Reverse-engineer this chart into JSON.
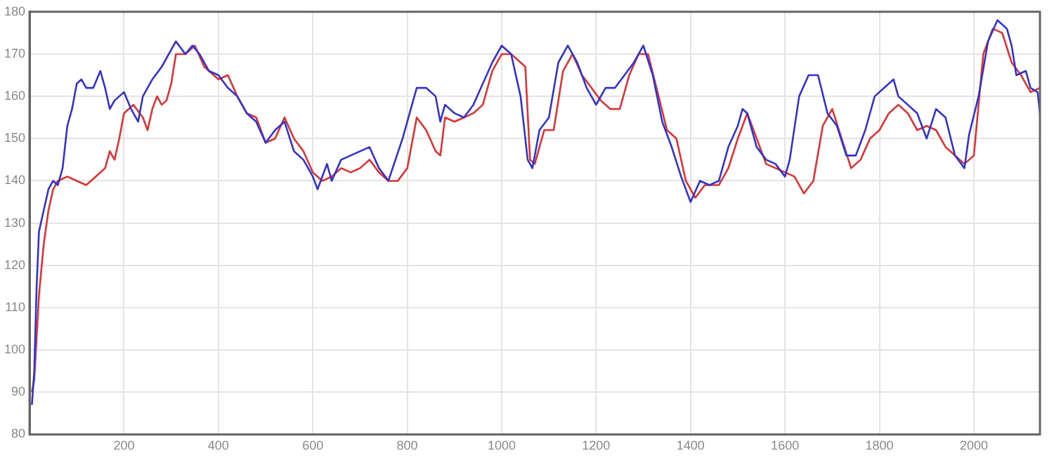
{
  "chart_data": {
    "type": "line",
    "xlim": [
      0,
      2140
    ],
    "ylim": [
      80,
      180
    ],
    "xticks": [
      200,
      400,
      600,
      800,
      1000,
      1200,
      1400,
      1600,
      1800,
      2000
    ],
    "yticks": [
      80,
      90,
      100,
      110,
      120,
      130,
      140,
      150,
      160,
      170,
      180
    ],
    "grid": true,
    "marker": "none",
    "line_style": "solid",
    "series": [
      {
        "color": "#3333cc",
        "x": [
          5,
          10,
          15,
          20,
          30,
          40,
          50,
          60,
          70,
          80,
          90,
          100,
          110,
          120,
          135,
          150,
          160,
          170,
          180,
          200,
          215,
          230,
          240,
          260,
          280,
          300,
          310,
          330,
          345,
          360,
          380,
          400,
          420,
          440,
          460,
          480,
          500,
          520,
          540,
          560,
          580,
          600,
          610,
          620,
          630,
          640,
          660,
          680,
          700,
          720,
          740,
          760,
          775,
          790,
          810,
          820,
          840,
          860,
          870,
          880,
          900,
          920,
          940,
          960,
          980,
          1000,
          1020,
          1040,
          1055,
          1065,
          1080,
          1100,
          1120,
          1140,
          1160,
          1180,
          1200,
          1220,
          1240,
          1260,
          1280,
          1300,
          1320,
          1340,
          1360,
          1380,
          1400,
          1420,
          1440,
          1460,
          1480,
          1500,
          1510,
          1520,
          1540,
          1560,
          1580,
          1600,
          1610,
          1630,
          1650,
          1670,
          1690,
          1710,
          1730,
          1750,
          1770,
          1790,
          1810,
          1830,
          1840,
          1860,
          1880,
          1900,
          1920,
          1940,
          1960,
          1980,
          1990,
          2010,
          2030,
          2050,
          2070,
          2080,
          2090,
          2110,
          2120,
          2135,
          2140
        ],
        "values": [
          87,
          95,
          115,
          128,
          133,
          138,
          140,
          139,
          143,
          153,
          157,
          163,
          164,
          162,
          162,
          166,
          162,
          157,
          159,
          161,
          157,
          154,
          160,
          164,
          167,
          171,
          173,
          170,
          172,
          170,
          166,
          165,
          162,
          160,
          156,
          154,
          149,
          152,
          154,
          147,
          145,
          141,
          138,
          141,
          144,
          140,
          145,
          146,
          147,
          148,
          143,
          140,
          145,
          150,
          158,
          162,
          162,
          160,
          154,
          158,
          156,
          155,
          158,
          163,
          168,
          172,
          170,
          160,
          145,
          143,
          152,
          155,
          168,
          172,
          168,
          162,
          158,
          162,
          162,
          165,
          168,
          172,
          165,
          154,
          148,
          141,
          135,
          140,
          139,
          140,
          148,
          153,
          157,
          156,
          148,
          145,
          144,
          141,
          145,
          160,
          165,
          165,
          156,
          153,
          146,
          146,
          152,
          160,
          162,
          164,
          160,
          158,
          156,
          150,
          157,
          155,
          146,
          143,
          151,
          160,
          173,
          178,
          176,
          172,
          165,
          166,
          162,
          161,
          156
        ]
      },
      {
        "color": "#dd3333",
        "x": [
          5,
          10,
          20,
          30,
          40,
          50,
          60,
          80,
          100,
          120,
          140,
          160,
          170,
          180,
          190,
          200,
          220,
          240,
          250,
          260,
          270,
          280,
          290,
          300,
          310,
          330,
          350,
          370,
          400,
          420,
          440,
          460,
          480,
          500,
          520,
          540,
          560,
          580,
          600,
          620,
          640,
          660,
          680,
          700,
          720,
          740,
          760,
          780,
          800,
          820,
          840,
          860,
          870,
          880,
          900,
          920,
          940,
          960,
          980,
          1000,
          1020,
          1050,
          1060,
          1070,
          1090,
          1110,
          1130,
          1150,
          1170,
          1190,
          1210,
          1230,
          1250,
          1270,
          1290,
          1310,
          1330,
          1350,
          1370,
          1390,
          1410,
          1430,
          1460,
          1480,
          1500,
          1520,
          1540,
          1560,
          1580,
          1600,
          1620,
          1640,
          1660,
          1680,
          1700,
          1720,
          1740,
          1760,
          1780,
          1800,
          1820,
          1840,
          1860,
          1880,
          1900,
          1920,
          1940,
          1960,
          1980,
          2000,
          2020,
          2040,
          2060,
          2080,
          2100,
          2120,
          2140
        ],
        "values": [
          90,
          93,
          113,
          125,
          133,
          138,
          140,
          141,
          140,
          139,
          141,
          143,
          147,
          145,
          150,
          156,
          158,
          155,
          152,
          157,
          160,
          158,
          159,
          163,
          170,
          170,
          172,
          167,
          164,
          165,
          160,
          156,
          155,
          149,
          150,
          155,
          150,
          147,
          142,
          140,
          141,
          143,
          142,
          143,
          145,
          142,
          140,
          140,
          143,
          155,
          152,
          147,
          146,
          155,
          154,
          155,
          156,
          158,
          166,
          170,
          170,
          167,
          145,
          144,
          152,
          152,
          166,
          170,
          165,
          162,
          159,
          157,
          157,
          165,
          170,
          170,
          161,
          152,
          150,
          140,
          136,
          139,
          139,
          143,
          150,
          156,
          150,
          144,
          143,
          142,
          141,
          137,
          140,
          153,
          157,
          150,
          143,
          145,
          150,
          152,
          156,
          158,
          156,
          152,
          153,
          152,
          148,
          146,
          144,
          146,
          170,
          176,
          175,
          168,
          165,
          161,
          162
        ]
      }
    ]
  }
}
